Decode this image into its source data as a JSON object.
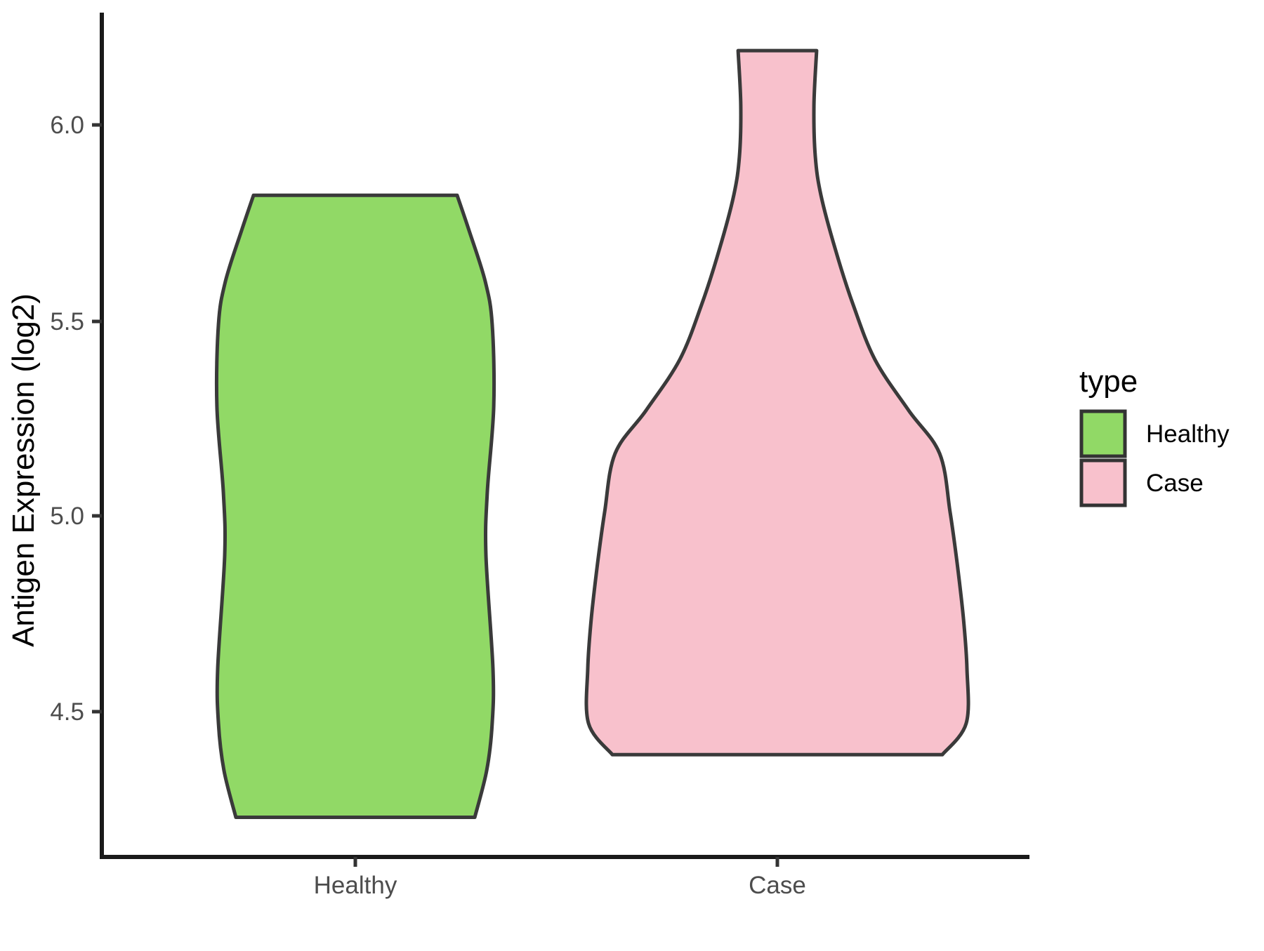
{
  "figure": {
    "background": "#ffffff",
    "axis_color": "#1a1a1a",
    "tick_color": "#333333",
    "tick_label_color": "#4d4d4d",
    "violin_outline_color": "#3a3a3a"
  },
  "y_axis": {
    "title": "Antigen Expression (log2)",
    "tick_labels": [
      "6.0",
      "5.5",
      "5.0",
      "4.5"
    ],
    "tick_values": [
      6.0,
      5.5,
      5.0,
      4.5
    ]
  },
  "x_axis": {
    "tick_labels": [
      "Healthy",
      "Case"
    ]
  },
  "legend": {
    "title": "type",
    "items": [
      {
        "label": "Healthy",
        "color": "#91d966"
      },
      {
        "label": "Case",
        "color": "#f8c1cc"
      }
    ]
  },
  "chart_data": {
    "type": "violin",
    "title": "",
    "xlabel": "",
    "ylabel": "Antigen Expression (log2)",
    "categories": [
      "Healthy",
      "Case"
    ],
    "y_tick_values": [
      4.5,
      5.0,
      5.5,
      6.0
    ],
    "y_axis_range": [
      4.1,
      6.3
    ],
    "grid": false,
    "legend_position": "right",
    "series": [
      {
        "name": "Healthy",
        "fill": "#91d966",
        "value_range": [
          4.23,
          5.82
        ],
        "flat_top_value": 5.82,
        "flat_bottom_value": 4.23,
        "profile": [
          [
            5.82,
            0.537
          ],
          [
            5.73,
            0.6
          ],
          [
            5.6,
            0.685
          ],
          [
            5.49,
            0.722
          ],
          [
            5.28,
            0.73
          ],
          [
            5.06,
            0.696
          ],
          [
            4.9,
            0.689
          ],
          [
            4.61,
            0.726
          ],
          [
            4.47,
            0.722
          ],
          [
            4.35,
            0.693
          ],
          [
            4.23,
            0.63
          ]
        ]
      },
      {
        "name": "Case",
        "fill": "#f8c1cc",
        "value_range": [
          4.39,
          6.19
        ],
        "flat_top_value": 6.19,
        "flat_bottom_value": 4.39,
        "profile": [
          [
            6.19,
            0.207
          ],
          [
            6.05,
            0.193
          ],
          [
            5.92,
            0.2
          ],
          [
            5.82,
            0.23
          ],
          [
            5.68,
            0.307
          ],
          [
            5.54,
            0.4
          ],
          [
            5.4,
            0.515
          ],
          [
            5.27,
            0.693
          ],
          [
            5.16,
            0.856
          ],
          [
            5.01,
            0.911
          ],
          [
            4.88,
            0.948
          ],
          [
            4.74,
            0.981
          ],
          [
            4.61,
            1.0
          ],
          [
            4.47,
            0.996
          ],
          [
            4.39,
            0.87
          ]
        ]
      }
    ]
  }
}
